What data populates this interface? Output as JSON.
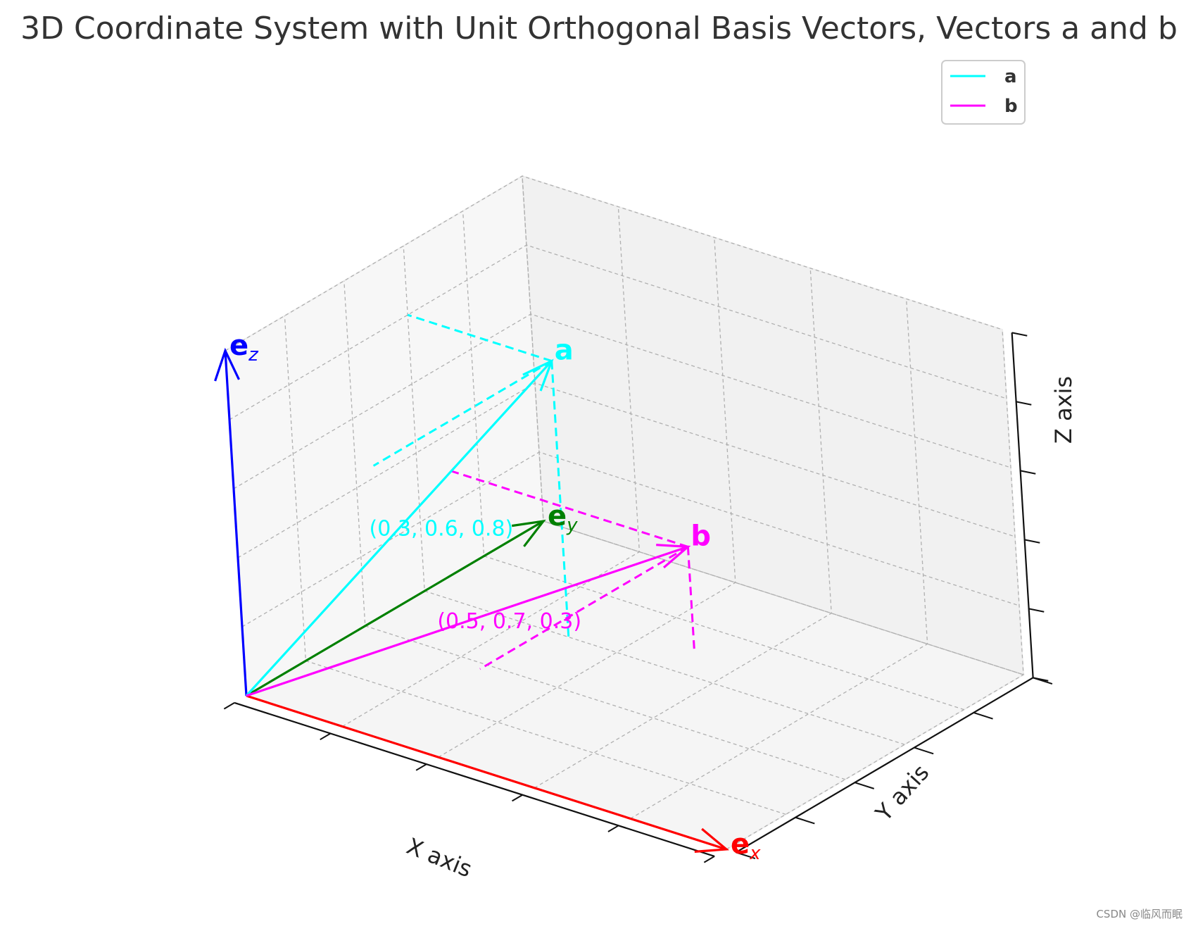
{
  "chart_data": {
    "type": "3d-vector",
    "title": "3D Coordinate System with Unit Orthogonal Basis Vectors, Vectors a and b",
    "xlabel": "X axis",
    "ylabel": "Y axis",
    "zlabel": "Z axis",
    "xlim": [
      0,
      1
    ],
    "ylim": [
      0,
      1
    ],
    "zlim": [
      0,
      1
    ],
    "x_ticks": [
      "0.0",
      "0.2",
      "0.4",
      "0.6",
      "0.8",
      "1.0"
    ],
    "y_ticks": [
      "0.0",
      "0.2",
      "0.4",
      "0.6",
      "0.8",
      "1.0"
    ],
    "z_ticks": [
      "0.0",
      "0.2",
      "0.4",
      "0.6",
      "0.8",
      "1.0"
    ],
    "grid": true,
    "basis_vectors": [
      {
        "label": "e",
        "subscript": "x",
        "vector": [
          1,
          0,
          0
        ],
        "color": "#ff0000"
      },
      {
        "label": "e",
        "subscript": "y",
        "vector": [
          0,
          1,
          0
        ],
        "color": "#008000"
      },
      {
        "label": "e",
        "subscript": "z",
        "vector": [
          0,
          0,
          1
        ],
        "color": "#0000ff"
      }
    ],
    "vectors": [
      {
        "name": "a",
        "vector": [
          0.3,
          0.6,
          0.8
        ],
        "color": "#00ffff",
        "annotation": "(0.3, 0.6, 0.8)"
      },
      {
        "name": "b",
        "vector": [
          0.5,
          0.7,
          0.3
        ],
        "color": "#ff00ff",
        "annotation": "(0.5, 0.7, 0.3)"
      }
    ],
    "legend": {
      "placement": "top-right",
      "entries": [
        {
          "label": "a",
          "color": "#00ffff"
        },
        {
          "label": "b",
          "color": "#ff00ff"
        }
      ]
    }
  },
  "watermark": "CSDN @临风而眠"
}
